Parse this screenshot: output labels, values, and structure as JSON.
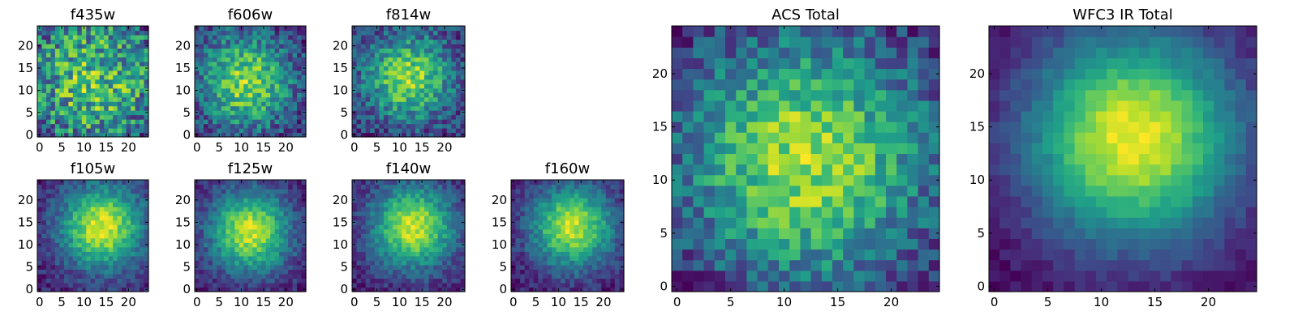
{
  "figure": {
    "colormap": "viridis",
    "panel_titles": [
      "f435w",
      "f606w",
      "f814w",
      "f105w",
      "f125w",
      "f140w",
      "f160w",
      "ACS Total",
      "WFC3 IR Total"
    ]
  },
  "chart_data": [
    {
      "type": "heatmap",
      "title": "f435w",
      "grid": 25,
      "peak": [
        12,
        12
      ],
      "sigma": 14,
      "noise": 0.45,
      "seed": 11,
      "xlim": [
        0,
        24
      ],
      "ylim": [
        0,
        24
      ],
      "xticks": [
        0,
        5,
        10,
        15,
        20
      ],
      "yticks": [
        0,
        5,
        10,
        15,
        20
      ]
    },
    {
      "type": "heatmap",
      "title": "f606w",
      "grid": 25,
      "peak": [
        11,
        12
      ],
      "sigma": 8,
      "noise": 0.3,
      "seed": 23,
      "xlim": [
        0,
        24
      ],
      "ylim": [
        0,
        24
      ],
      "xticks": [
        0,
        5,
        10,
        15,
        20
      ],
      "yticks": [
        0,
        5,
        10,
        15,
        20
      ]
    },
    {
      "type": "heatmap",
      "title": "f814w",
      "grid": 25,
      "peak": [
        12,
        13
      ],
      "sigma": 7,
      "noise": 0.3,
      "seed": 37,
      "xlim": [
        0,
        24
      ],
      "ylim": [
        0,
        24
      ],
      "xticks": [
        0,
        5,
        10,
        15,
        20
      ],
      "yticks": [
        0,
        5,
        10,
        15,
        20
      ]
    },
    {
      "type": "heatmap",
      "title": "f105w",
      "grid": 25,
      "peak": [
        14,
        14
      ],
      "sigma": 6.5,
      "noise": 0.14,
      "seed": 41,
      "xlim": [
        0,
        24
      ],
      "ylim": [
        0,
        24
      ],
      "xticks": [
        0,
        5,
        10,
        15,
        20
      ],
      "yticks": [
        0,
        5,
        10,
        15,
        20
      ]
    },
    {
      "type": "heatmap",
      "title": "f125w",
      "grid": 25,
      "peak": [
        12,
        13
      ],
      "sigma": 6.5,
      "noise": 0.14,
      "seed": 53,
      "xlim": [
        0,
        24
      ],
      "ylim": [
        0,
        24
      ],
      "xticks": [
        0,
        5,
        10,
        15,
        20
      ],
      "yticks": [
        0,
        5,
        10,
        15,
        20
      ]
    },
    {
      "type": "heatmap",
      "title": "f140w",
      "grid": 25,
      "peak": [
        13,
        14
      ],
      "sigma": 6.5,
      "noise": 0.14,
      "seed": 67,
      "xlim": [
        0,
        24
      ],
      "ylim": [
        0,
        24
      ],
      "xticks": [
        0,
        5,
        10,
        15,
        20
      ],
      "yticks": [
        0,
        5,
        10,
        15,
        20
      ]
    },
    {
      "type": "heatmap",
      "title": "f160w",
      "grid": 25,
      "peak": [
        13,
        14
      ],
      "sigma": 6.5,
      "noise": 0.14,
      "seed": 79,
      "xlim": [
        0,
        24
      ],
      "ylim": [
        0,
        24
      ],
      "xticks": [
        0,
        5,
        10,
        15,
        20
      ],
      "yticks": [
        0,
        5,
        10,
        15,
        20
      ]
    },
    {
      "type": "heatmap",
      "title": "ACS Total",
      "grid": 25,
      "peak": [
        12,
        12
      ],
      "sigma": 9,
      "noise": 0.22,
      "seed": 97,
      "xlim": [
        0,
        24
      ],
      "ylim": [
        0,
        24
      ],
      "xticks": [
        0,
        5,
        10,
        15,
        20
      ],
      "yticks": [
        0,
        5,
        10,
        15,
        20
      ]
    },
    {
      "type": "heatmap",
      "title": "WFC3 IR Total",
      "grid": 25,
      "peak": [
        13,
        14
      ],
      "sigma": 7,
      "noise": 0.06,
      "seed": 101,
      "xlim": [
        0,
        24
      ],
      "ylim": [
        0,
        24
      ],
      "xticks": [
        0,
        5,
        10,
        15,
        20
      ],
      "yticks": [
        0,
        5,
        10,
        15,
        20
      ]
    }
  ]
}
